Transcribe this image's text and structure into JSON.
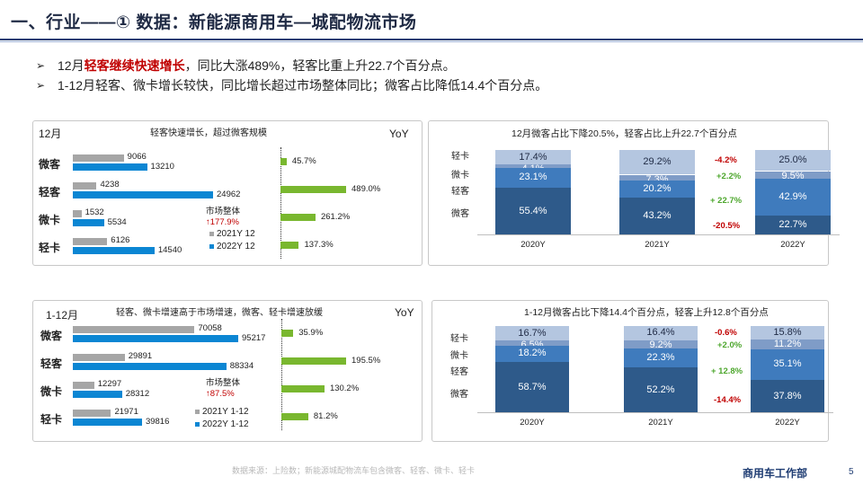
{
  "title": "一、行业——① 数据：新能源商用车—城配物流市场",
  "bullets": [
    {
      "parts": [
        {
          "t": "12月",
          "hl": false
        },
        {
          "t": "轻客继续快速增长",
          "hl": true
        },
        {
          "t": "，同比大涨489%，轻客比重上升22.7个百分点。",
          "hl": false
        }
      ]
    },
    {
      "parts": [
        {
          "t": "1-12月轻客、微卡增长较快，同比增长超过市场整体同比；微客占比降低14.4个百分点。",
          "hl": false
        }
      ]
    }
  ],
  "arrow": "➢",
  "colors": {
    "y2021": "#a6a6a6",
    "y2022": "#0b86d3",
    "yoy": "#79b72f",
    "weike_stack": "#2e5a8a",
    "weika_stack": "#3f7bbd",
    "qingka_stack": "#7f9cc7",
    "qingke_stack": "#b4c6e0",
    "up": "#4ea72e",
    "down": "#c00000"
  },
  "chart_data": [
    {
      "type": "bar",
      "period": "12月",
      "title": "轻客快速增长，超过微客规模",
      "yoy_label": "YoY",
      "categories": [
        "微客",
        "轻客",
        "微卡",
        "轻卡"
      ],
      "series": [
        {
          "name": "2021Y 12",
          "values": [
            9066,
            4238,
            1532,
            6126
          ]
        },
        {
          "name": "2022Y 12",
          "values": [
            13210,
            24962,
            5534,
            14540
          ]
        }
      ],
      "yoy": [
        45.7,
        489.0,
        261.2,
        137.3
      ],
      "yoy_labels": [
        "45.7%",
        "489.0%",
        "261.2%",
        "137.3%"
      ],
      "market": {
        "label": "市场整体",
        "value": "↑177.9%"
      }
    },
    {
      "type": "bar",
      "stacked": true,
      "title": "12月微客占比下降20.5%，轻客占比上升22.7个百分点",
      "categories": [
        "2020Y",
        "2021Y",
        "2022Y"
      ],
      "series": [
        {
          "name": "微客",
          "values": [
            55.4,
            43.2,
            22.7
          ],
          "labels": [
            "55.4%",
            "43.2%",
            "22.7%"
          ]
        },
        {
          "name": "轻客",
          "values": [
            23.1,
            20.2,
            42.9
          ],
          "labels": [
            "23.1%",
            "20.2%",
            "42.9%"
          ]
        },
        {
          "name": "微卡",
          "values": [
            4.1,
            7.3,
            9.5
          ],
          "labels": [
            "4.1%",
            "7.3%",
            "9.5%"
          ]
        },
        {
          "name": "轻卡",
          "values": [
            17.4,
            29.2,
            25.0
          ],
          "labels": [
            "17.4%",
            "29.2%",
            "25.0%"
          ]
        }
      ],
      "changes": [
        {
          "series": "轻卡",
          "text": "-4.2%",
          "dir": "down"
        },
        {
          "series": "微卡",
          "text": "+2.2%",
          "dir": "up"
        },
        {
          "series": "轻客",
          "text": "+ 22.7%",
          "dir": "up"
        },
        {
          "series": "微客",
          "text": "-20.5%",
          "dir": "down"
        }
      ]
    },
    {
      "type": "bar",
      "period": "1-12月",
      "title": "轻客、微卡增速高于市场增速，微客、轻卡增速放缓",
      "yoy_label": "YoY",
      "categories": [
        "微客",
        "轻客",
        "微卡",
        "轻卡"
      ],
      "series": [
        {
          "name": "2021Y 1-12",
          "values": [
            70058,
            29891,
            12297,
            21971
          ]
        },
        {
          "name": "2022Y 1-12",
          "values": [
            95217,
            88334,
            28312,
            39816
          ]
        }
      ],
      "yoy": [
        35.9,
        195.5,
        130.2,
        81.2
      ],
      "yoy_labels": [
        "35.9%",
        "195.5%",
        "130.2%",
        "81.2%"
      ],
      "market": {
        "label": "市场整体",
        "value": "↑87.5%"
      }
    },
    {
      "type": "bar",
      "stacked": true,
      "title": "1-12月微客占比下降14.4个百分点，轻客上升12.8个百分点",
      "categories": [
        "2020Y",
        "2021Y",
        "2022Y"
      ],
      "series": [
        {
          "name": "微客",
          "values": [
            58.7,
            52.2,
            37.8
          ],
          "labels": [
            "58.7%",
            "52.2%",
            "37.8%"
          ]
        },
        {
          "name": "轻客",
          "values": [
            18.2,
            22.3,
            35.1
          ],
          "labels": [
            "18.2%",
            "22.3%",
            "35.1%"
          ]
        },
        {
          "name": "微卡",
          "values": [
            6.5,
            9.2,
            11.2
          ],
          "labels": [
            "6.5%",
            "9.2%",
            "11.2%"
          ]
        },
        {
          "name": "轻卡",
          "values": [
            16.7,
            16.4,
            15.8
          ],
          "labels": [
            "16.7%",
            "16.4%",
            "15.8%"
          ]
        }
      ],
      "changes": [
        {
          "series": "轻卡",
          "text": "-0.6%",
          "dir": "down"
        },
        {
          "series": "微卡",
          "text": "+2.0%",
          "dir": "up"
        },
        {
          "series": "轻客",
          "text": "+ 12.8%",
          "dir": "up"
        },
        {
          "series": "微客",
          "text": "-14.4%",
          "dir": "down"
        }
      ]
    }
  ],
  "footer": "数据来源：上险数；新能源城配物流车包含微客、轻客、微卡、轻卡",
  "department": "商用车工作部",
  "page_number": "5"
}
